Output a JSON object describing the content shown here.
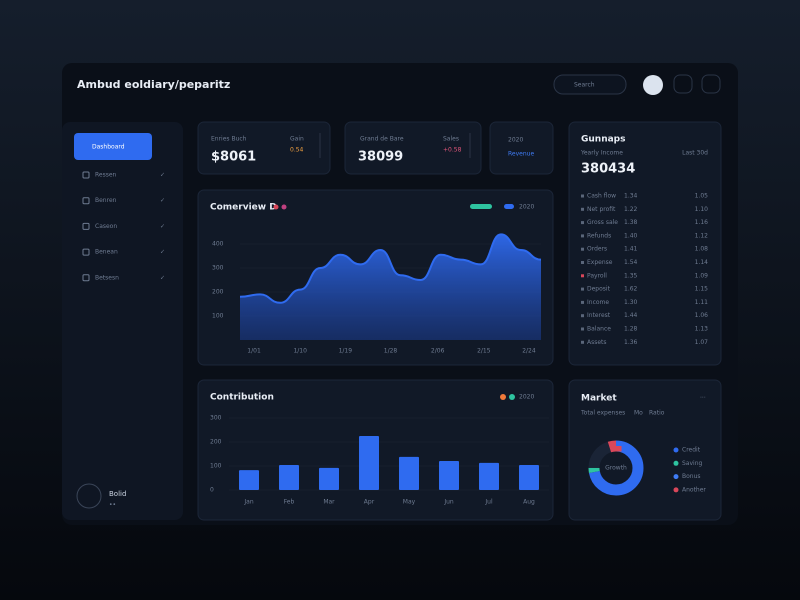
{
  "header": {
    "title": "Ambud eoldiary/peparitz",
    "search": "Search"
  },
  "sidebar": {
    "active": "Dashboard",
    "items": [
      "Ressen",
      "Benren",
      "Caseon",
      "Benean",
      "Betsesn"
    ],
    "profile": "Bolid",
    "profile_sub": "••"
  },
  "stats": [
    {
      "label": "Enries Buch",
      "value": "$8061",
      "side_label": "Gain",
      "side_value": "0.54"
    },
    {
      "label": "Grand de Bare",
      "value": "38099",
      "side_label": "Sales",
      "side_value": "+0.58"
    },
    {
      "label": "2020",
      "value": "Revenue"
    }
  ],
  "list_panel": {
    "title": "Gunnaps",
    "subtitle": "Yearly Income",
    "period": "Last 30d",
    "total": "380434",
    "rows": [
      [
        "Cash flow",
        "1.34",
        "1.05"
      ],
      [
        "Net profit",
        "1.22",
        "1.10"
      ],
      [
        "Gross sale",
        "1.38",
        "1.16"
      ],
      [
        "Refunds",
        "1.40",
        "1.12"
      ],
      [
        "Orders",
        "1.41",
        "1.08"
      ],
      [
        "Expense",
        "1.54",
        "1.14"
      ],
      [
        "Payroll",
        "1.35",
        "1.09"
      ],
      [
        "Deposit",
        "1.62",
        "1.15"
      ],
      [
        "Income",
        "1.30",
        "1.11"
      ],
      [
        "Interest",
        "1.44",
        "1.06"
      ],
      [
        "Balance",
        "1.28",
        "1.13"
      ],
      [
        "Assets",
        "1.36",
        "1.07"
      ]
    ]
  },
  "chart_data": [
    {
      "type": "area",
      "title": "Comerview D",
      "series": [
        {
          "name": "2020",
          "color": "#2f6bf0",
          "values": [
            180,
            190,
            155,
            210,
            300,
            355,
            315,
            375,
            270,
            250,
            355,
            335,
            315,
            440,
            375,
            335
          ]
        }
      ],
      "x": [
        0,
        1,
        2,
        3,
        4,
        5,
        6,
        7,
        8,
        9,
        10,
        11,
        12,
        13,
        14,
        15
      ],
      "xlim": [
        0,
        15
      ],
      "xticks": [
        {
          "value": 0.7,
          "label": "1/01"
        },
        {
          "value": 3,
          "label": "1/10"
        },
        {
          "value": 5.25,
          "label": "1/19"
        },
        {
          "value": 7.5,
          "label": "1/28"
        },
        {
          "value": 9.85,
          "label": "2/06"
        },
        {
          "value": 12.15,
          "label": "2/15"
        },
        {
          "value": 14.4,
          "label": "2/24"
        }
      ],
      "ylim": [
        0,
        450
      ],
      "yticks": [
        100,
        200,
        300,
        400
      ]
    },
    {
      "type": "bar",
      "title": "Contribution",
      "legend": "2020",
      "color": "#2f6bf0",
      "categories": [
        "Jan",
        "Feb",
        "Mar",
        "Apr",
        "May",
        "Jun",
        "Jul",
        "Aug"
      ],
      "values": [
        83,
        104,
        92,
        225,
        138,
        121,
        113,
        104
      ],
      "ylim": [
        0,
        300
      ],
      "yticks": [
        0,
        100,
        200,
        300
      ]
    },
    {
      "type": "pie",
      "title": "Market",
      "subtitle": [
        "Total expenses",
        "Mo",
        "Ratio"
      ],
      "center": "Growth",
      "categories": [
        "Credit",
        "Saving",
        "Bonus",
        "Another"
      ],
      "values": [
        72,
        3,
        20,
        5
      ],
      "colors": [
        "#2f6bf0",
        "#2ec4a0",
        "#1a2436",
        "#d9475a"
      ]
    }
  ]
}
